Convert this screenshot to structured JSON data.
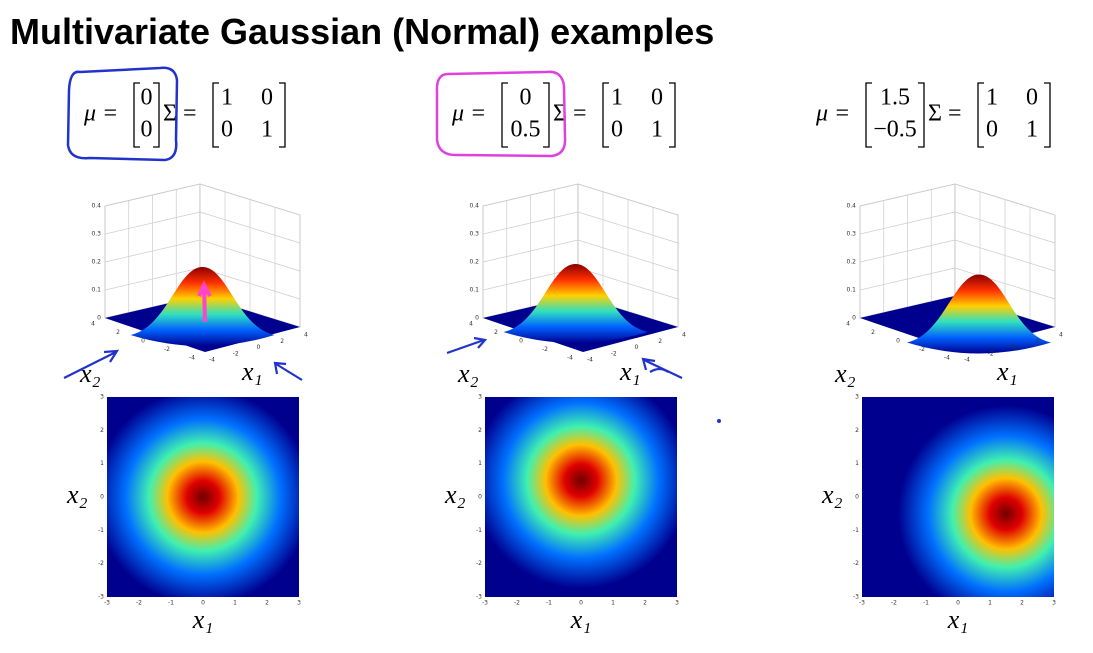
{
  "title": "Multivariate Gaussian (Normal) examples",
  "labels": {
    "mu": "μ =",
    "sigma": "Σ =",
    "x1": "x₁",
    "x2": "x₂"
  },
  "axes": {
    "surface_z_ticks": [
      "0",
      "0.1",
      "0.2",
      "0.3",
      "0.4"
    ],
    "surface_xy_ticks": [
      "-4",
      "-2",
      "0",
      "2",
      "4"
    ],
    "heatmap_ticks": [
      "-3",
      "-2",
      "-1",
      "0",
      "1",
      "2",
      "3"
    ]
  },
  "panels": [
    {
      "mu": [
        "0",
        "0"
      ],
      "sigma": [
        [
          "1",
          "0"
        ],
        [
          "0",
          "1"
        ]
      ]
    },
    {
      "mu": [
        "0",
        "0.5"
      ],
      "sigma": [
        [
          "1",
          "0"
        ],
        [
          "0",
          "1"
        ]
      ]
    },
    {
      "mu": [
        "1.5",
        "−0.5"
      ],
      "sigma": [
        [
          "1",
          "0"
        ],
        [
          "0",
          "1"
        ]
      ]
    }
  ]
}
